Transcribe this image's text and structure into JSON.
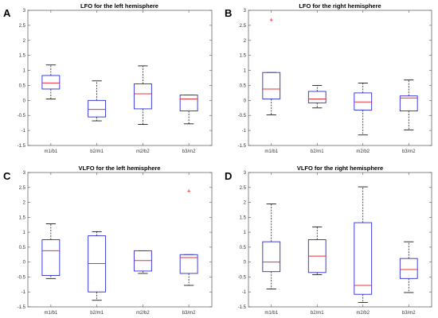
{
  "chart_data": [
    {
      "type": "box",
      "letter": "A",
      "title": "LFO for the left hemisphere",
      "categories": [
        "m1/b1",
        "b2/m1",
        "m2/b2",
        "b3/m2"
      ],
      "ylim": [
        -1.5,
        3
      ],
      "yticks": [
        "-1.5",
        "-1",
        "-0.5",
        "0",
        "0.5",
        "1",
        "1.5",
        "2",
        "2.5",
        "3"
      ],
      "boxes": [
        {
          "whisker_low": 0.05,
          "q1": 0.38,
          "median": 0.58,
          "q3": 0.83,
          "whisker_high": 1.18,
          "outliers": []
        },
        {
          "whisker_low": -0.68,
          "q1": -0.55,
          "median": -0.3,
          "q3": 0.0,
          "whisker_high": 0.65,
          "outliers": []
        },
        {
          "whisker_low": -0.8,
          "q1": -0.28,
          "median": 0.22,
          "q3": 0.55,
          "whisker_high": 1.15,
          "outliers": []
        },
        {
          "whisker_low": -0.78,
          "q1": -0.35,
          "median": 0.05,
          "q3": 0.18,
          "whisker_high": 0.18,
          "outliers": []
        }
      ],
      "grid": false
    },
    {
      "type": "box",
      "letter": "B",
      "title": "LFO for the right hemisphere",
      "categories": [
        "m1/b1",
        "b2/m1",
        "m2/b2",
        "b3/m2"
      ],
      "ylim": [
        -1.5,
        3
      ],
      "yticks": [
        "-1.5",
        "-1",
        "-0.5",
        "0",
        "0.5",
        "1",
        "1.5",
        "2",
        "2.5",
        "3"
      ],
      "boxes": [
        {
          "whisker_low": -0.48,
          "q1": 0.05,
          "median": 0.38,
          "q3": 0.93,
          "whisker_high": 0.93,
          "outliers": [
            2.68
          ]
        },
        {
          "whisker_low": -0.25,
          "q1": -0.08,
          "median": 0.05,
          "q3": 0.3,
          "whisker_high": 0.5,
          "outliers": []
        },
        {
          "whisker_low": -1.15,
          "q1": -0.32,
          "median": -0.05,
          "q3": 0.25,
          "whisker_high": 0.58,
          "outliers": []
        },
        {
          "whisker_low": -0.98,
          "q1": -0.35,
          "median": 0.08,
          "q3": 0.15,
          "whisker_high": 0.68,
          "outliers": []
        }
      ],
      "grid": false
    },
    {
      "type": "box",
      "letter": "C",
      "title": "VLFO for the left hemisphere",
      "categories": [
        "m1/b1",
        "b2/m1",
        "m2/b2",
        "b3/m2"
      ],
      "ylim": [
        -1.5,
        3
      ],
      "yticks": [
        "-1.5",
        "-1",
        "-0.5",
        "0",
        "0.5",
        "1",
        "1.5",
        "2",
        "2.5",
        "3"
      ],
      "boxes": [
        {
          "whisker_low": -0.55,
          "q1": -0.45,
          "median": 0.38,
          "q3": 0.75,
          "whisker_high": 1.28,
          "outliers": []
        },
        {
          "whisker_low": -1.28,
          "q1": -1.0,
          "median": -0.05,
          "q3": 0.88,
          "whisker_high": 1.02,
          "outliers": []
        },
        {
          "whisker_low": -0.38,
          "q1": -0.3,
          "median": 0.05,
          "q3": 0.38,
          "whisker_high": 0.38,
          "outliers": []
        },
        {
          "whisker_low": -0.78,
          "q1": -0.38,
          "median": 0.15,
          "q3": 0.25,
          "whisker_high": 0.25,
          "outliers": [
            2.38
          ]
        }
      ],
      "grid": false
    },
    {
      "type": "box",
      "letter": "D",
      "title": "VLFO for the right hemisphere",
      "categories": [
        "m1/b1",
        "b2/m1",
        "m2/b2",
        "b3/m2"
      ],
      "ylim": [
        -1.5,
        3
      ],
      "yticks": [
        "-1.5",
        "-1",
        "-0.5",
        "0",
        "0.5",
        "1",
        "1.5",
        "2",
        "2.5",
        "3"
      ],
      "boxes": [
        {
          "whisker_low": -0.9,
          "q1": -0.32,
          "median": 0.0,
          "q3": 0.68,
          "whisker_high": 1.95,
          "outliers": []
        },
        {
          "whisker_low": -0.42,
          "q1": -0.35,
          "median": 0.2,
          "q3": 0.75,
          "whisker_high": 1.18,
          "outliers": []
        },
        {
          "whisker_low": -1.35,
          "q1": -1.08,
          "median": -0.78,
          "q3": 1.32,
          "whisker_high": 2.52,
          "outliers": []
        },
        {
          "whisker_low": -1.02,
          "q1": -0.55,
          "median": -0.25,
          "q3": 0.12,
          "whisker_high": 0.68,
          "outliers": []
        }
      ],
      "grid": false
    }
  ],
  "colors": {
    "box_edge": "#2b2bd9",
    "median": "#e8333a",
    "whisker": "#000000",
    "outlier": "#e8333a",
    "axis": "#555555"
  }
}
